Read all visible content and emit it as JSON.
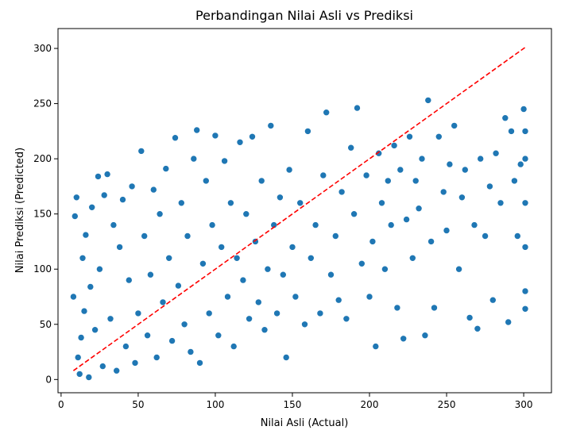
{
  "chart_data": {
    "type": "scatter",
    "title": "Perbandingan Nilai Asli vs Prediksi",
    "xlabel": "Nilai Asli (Actual)",
    "ylabel": "Nilai Prediksi (Predicted)",
    "xlim": [
      -2,
      318
    ],
    "ylim": [
      -12,
      318
    ],
    "xticks": [
      0,
      50,
      100,
      150,
      200,
      250,
      300
    ],
    "yticks": [
      0,
      50,
      100,
      150,
      200,
      250,
      300
    ],
    "grid": false,
    "point_color": "#1f77b4",
    "point_edge_color": "#ffffff",
    "reference_line": {
      "x": [
        8,
        301
      ],
      "y": [
        8,
        301
      ],
      "color": "#ff0000",
      "style": "dashed"
    },
    "sample_points": [
      [
        8,
        75
      ],
      [
        9,
        148
      ],
      [
        10,
        165
      ],
      [
        11,
        20
      ],
      [
        12,
        5
      ],
      [
        13,
        38
      ],
      [
        14,
        110
      ],
      [
        15,
        62
      ],
      [
        16,
        131
      ],
      [
        18,
        2
      ],
      [
        19,
        84
      ],
      [
        20,
        156
      ],
      [
        22,
        45
      ],
      [
        24,
        184
      ],
      [
        25,
        100
      ],
      [
        27,
        12
      ],
      [
        28,
        167
      ],
      [
        30,
        186
      ],
      [
        32,
        55
      ],
      [
        34,
        140
      ],
      [
        36,
        8
      ],
      [
        38,
        120
      ],
      [
        40,
        163
      ],
      [
        42,
        30
      ],
      [
        44,
        90
      ],
      [
        46,
        175
      ],
      [
        48,
        15
      ],
      [
        50,
        60
      ],
      [
        52,
        207
      ],
      [
        54,
        130
      ],
      [
        56,
        40
      ],
      [
        58,
        95
      ],
      [
        60,
        172
      ],
      [
        62,
        20
      ],
      [
        64,
        150
      ],
      [
        66,
        70
      ],
      [
        68,
        191
      ],
      [
        70,
        110
      ],
      [
        72,
        35
      ],
      [
        74,
        219
      ],
      [
        76,
        85
      ],
      [
        78,
        160
      ],
      [
        80,
        50
      ],
      [
        82,
        130
      ],
      [
        84,
        25
      ],
      [
        86,
        200
      ],
      [
        88,
        226
      ],
      [
        90,
        15
      ],
      [
        92,
        105
      ],
      [
        94,
        180
      ],
      [
        96,
        60
      ],
      [
        98,
        140
      ],
      [
        100,
        221
      ],
      [
        102,
        40
      ],
      [
        104,
        120
      ],
      [
        106,
        198
      ],
      [
        108,
        75
      ],
      [
        110,
        160
      ],
      [
        112,
        30
      ],
      [
        114,
        110
      ],
      [
        116,
        215
      ],
      [
        118,
        90
      ],
      [
        120,
        150
      ],
      [
        122,
        55
      ],
      [
        124,
        220
      ],
      [
        126,
        125
      ],
      [
        128,
        70
      ],
      [
        130,
        180
      ],
      [
        132,
        45
      ],
      [
        134,
        100
      ],
      [
        136,
        230
      ],
      [
        138,
        140
      ],
      [
        140,
        60
      ],
      [
        142,
        165
      ],
      [
        144,
        95
      ],
      [
        146,
        20
      ],
      [
        148,
        190
      ],
      [
        150,
        120
      ],
      [
        152,
        75
      ],
      [
        155,
        160
      ],
      [
        158,
        50
      ],
      [
        160,
        225
      ],
      [
        162,
        110
      ],
      [
        165,
        140
      ],
      [
        168,
        60
      ],
      [
        170,
        185
      ],
      [
        172,
        242
      ],
      [
        175,
        95
      ],
      [
        178,
        130
      ],
      [
        180,
        72
      ],
      [
        182,
        170
      ],
      [
        185,
        55
      ],
      [
        188,
        210
      ],
      [
        190,
        150
      ],
      [
        192,
        246
      ],
      [
        195,
        105
      ],
      [
        198,
        185
      ],
      [
        200,
        75
      ],
      [
        202,
        125
      ],
      [
        204,
        30
      ],
      [
        206,
        205
      ],
      [
        208,
        160
      ],
      [
        210,
        100
      ],
      [
        212,
        180
      ],
      [
        214,
        140
      ],
      [
        216,
        212
      ],
      [
        218,
        65
      ],
      [
        220,
        190
      ],
      [
        222,
        37
      ],
      [
        224,
        145
      ],
      [
        226,
        220
      ],
      [
        228,
        110
      ],
      [
        230,
        180
      ],
      [
        232,
        155
      ],
      [
        234,
        200
      ],
      [
        236,
        40
      ],
      [
        238,
        253
      ],
      [
        240,
        125
      ],
      [
        242,
        65
      ],
      [
        245,
        220
      ],
      [
        248,
        170
      ],
      [
        250,
        135
      ],
      [
        252,
        195
      ],
      [
        255,
        230
      ],
      [
        258,
        100
      ],
      [
        260,
        165
      ],
      [
        262,
        190
      ],
      [
        265,
        56
      ],
      [
        268,
        140
      ],
      [
        270,
        46
      ],
      [
        272,
        200
      ],
      [
        275,
        130
      ],
      [
        278,
        175
      ],
      [
        280,
        72
      ],
      [
        282,
        205
      ],
      [
        285,
        160
      ],
      [
        288,
        237
      ],
      [
        290,
        52
      ],
      [
        292,
        225
      ],
      [
        294,
        180
      ],
      [
        296,
        130
      ],
      [
        298,
        195
      ],
      [
        300,
        245
      ],
      [
        301,
        64
      ],
      [
        301,
        80
      ],
      [
        301,
        120
      ],
      [
        301,
        160
      ],
      [
        301,
        200
      ],
      [
        301,
        225
      ]
    ]
  }
}
